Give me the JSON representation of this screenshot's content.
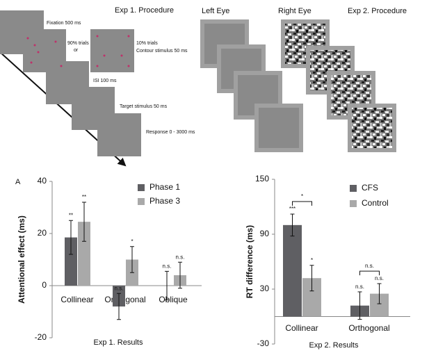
{
  "chart_data": [
    {
      "type": "bar",
      "panel": "A",
      "caption": "Exp 1. Results",
      "ylabel": "Attentional effect (ms)",
      "categories": [
        "Collinear",
        "Orthogonal",
        "Oblique"
      ],
      "series": [
        {
          "name": "Phase 1",
          "color": "#5f5f63",
          "values": [
            18.5,
            -8,
            0
          ],
          "errors": [
            6.5,
            5,
            5.5
          ],
          "labels": [
            "**",
            "n.s.",
            "n.s."
          ]
        },
        {
          "name": "Phase 3",
          "color": "#a9a9a9",
          "values": [
            24.5,
            10,
            4
          ],
          "errors": [
            7.5,
            5,
            5
          ],
          "labels": [
            "**",
            "*",
            "n.s."
          ]
        }
      ],
      "ylim": [
        -20,
        40
      ],
      "yticks": [
        -20,
        0,
        20,
        40
      ],
      "grid": false,
      "legend": "top-right"
    },
    {
      "type": "bar",
      "caption": "Exp 2. Results",
      "ylabel": "RT difference (ms)",
      "categories": [
        "Collinear",
        "Orthogonal"
      ],
      "series": [
        {
          "name": "CFS",
          "color": "#5f5f63",
          "values": [
            100,
            12
          ],
          "errors": [
            12,
            15
          ],
          "labels": [
            "***",
            "n.s."
          ]
        },
        {
          "name": "Control",
          "color": "#a9a9a9",
          "values": [
            42,
            25
          ],
          "errors": [
            14,
            11
          ],
          "labels": [
            "*",
            "n.s."
          ]
        }
      ],
      "comparisons": [
        "*",
        "n.s."
      ],
      "ylim": [
        -30,
        150
      ],
      "yticks": [
        -30,
        30,
        90,
        150
      ],
      "grid": false,
      "legend": "top-right"
    }
  ],
  "exp1_procedure": {
    "title": "Exp 1. Procedure",
    "fixation": "Fixation 500 ms",
    "majority": "90% trials",
    "or": "or",
    "minority": "10% trials",
    "contour": "Contour stimulus 50 ms",
    "isi": "ISI 100 ms",
    "target": "Target stimulus 50 ms",
    "response": "Response 0 - 3000 ms"
  },
  "exp2_procedure": {
    "left": "Left Eye",
    "right": "Right Eye",
    "title": "Exp 2. Procedure"
  }
}
